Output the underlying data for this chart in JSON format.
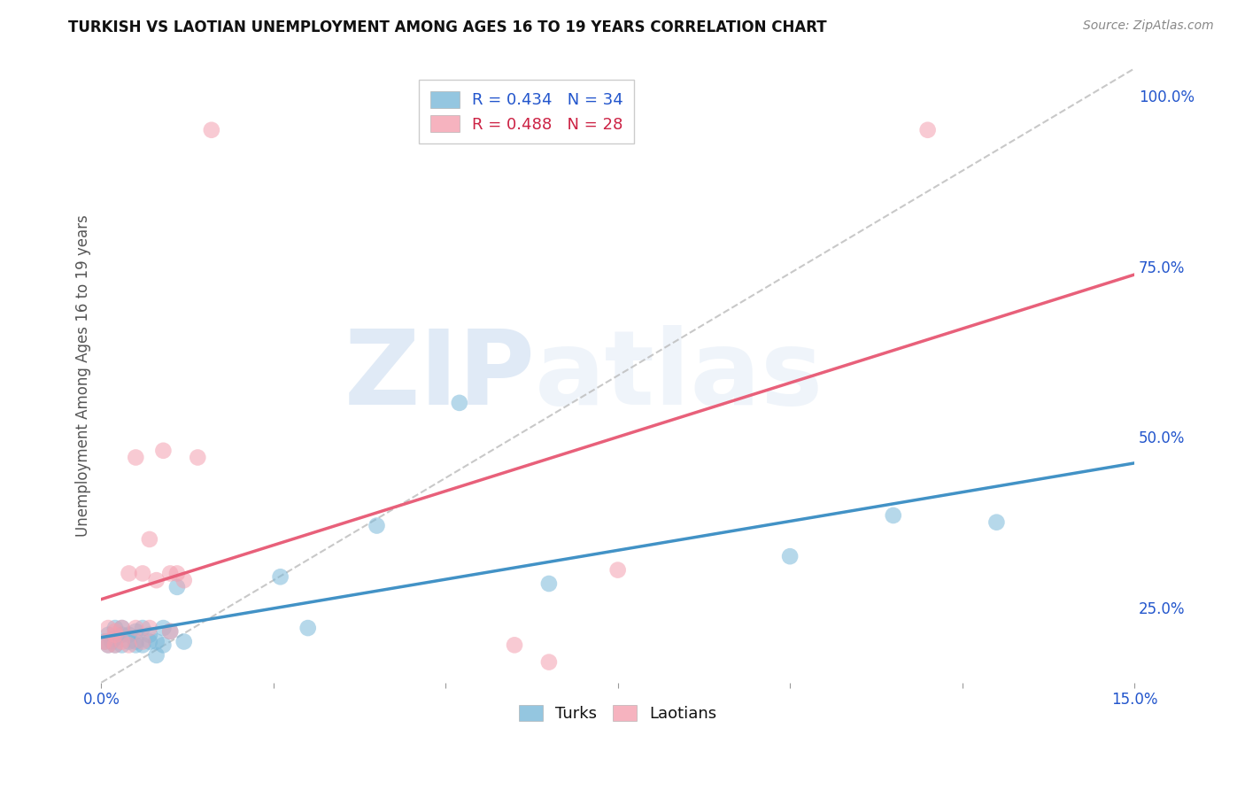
{
  "title": "TURKISH VS LAOTIAN UNEMPLOYMENT AMONG AGES 16 TO 19 YEARS CORRELATION CHART",
  "source": "Source: ZipAtlas.com",
  "ylabel": "Unemployment Among Ages 16 to 19 years",
  "xlim": [
    0.0,
    0.15
  ],
  "ylim": [
    0.14,
    1.04
  ],
  "xtick_positions": [
    0.0,
    0.025,
    0.05,
    0.075,
    0.1,
    0.125,
    0.15
  ],
  "xticklabels": [
    "0.0%",
    "",
    "",
    "",
    "",
    "",
    "15.0%"
  ],
  "ytick_right_pos": [
    0.25,
    0.5,
    0.75,
    1.0
  ],
  "ytick_right_labels": [
    "25.0%",
    "50.0%",
    "75.0%",
    "100.0%"
  ],
  "turks_color": "#7ab8d9",
  "laotians_color": "#f4a0b0",
  "turks_line_color": "#4292c6",
  "laotians_line_color": "#e8607a",
  "legend_label_turks": "R = 0.434   N = 34",
  "legend_label_laotians": "R = 0.488   N = 28",
  "background_color": "#ffffff",
  "grid_color": "#cccccc",
  "watermark_zip": "ZIP",
  "watermark_atlas": "atlas",
  "title_fontsize": 12,
  "source_fontsize": 10,
  "tick_fontsize": 12,
  "ylabel_fontsize": 12,
  "turks_x": [
    0.0005,
    0.001,
    0.001,
    0.0015,
    0.002,
    0.002,
    0.002,
    0.003,
    0.003,
    0.003,
    0.004,
    0.004,
    0.005,
    0.005,
    0.005,
    0.006,
    0.006,
    0.007,
    0.007,
    0.008,
    0.008,
    0.009,
    0.009,
    0.01,
    0.011,
    0.012,
    0.026,
    0.03,
    0.04,
    0.052,
    0.065,
    0.1,
    0.115,
    0.13
  ],
  "turks_y": [
    0.2,
    0.195,
    0.21,
    0.2,
    0.195,
    0.205,
    0.22,
    0.195,
    0.21,
    0.22,
    0.2,
    0.21,
    0.195,
    0.2,
    0.215,
    0.195,
    0.22,
    0.2,
    0.21,
    0.18,
    0.2,
    0.22,
    0.195,
    0.215,
    0.28,
    0.2,
    0.295,
    0.22,
    0.37,
    0.55,
    0.285,
    0.325,
    0.385,
    0.375
  ],
  "laotians_x": [
    0.0005,
    0.001,
    0.001,
    0.002,
    0.002,
    0.002,
    0.003,
    0.003,
    0.004,
    0.004,
    0.005,
    0.005,
    0.006,
    0.006,
    0.007,
    0.007,
    0.008,
    0.009,
    0.01,
    0.01,
    0.011,
    0.012,
    0.014,
    0.016,
    0.06,
    0.065,
    0.075,
    0.12
  ],
  "laotians_y": [
    0.2,
    0.195,
    0.22,
    0.195,
    0.21,
    0.215,
    0.2,
    0.22,
    0.195,
    0.3,
    0.47,
    0.22,
    0.2,
    0.3,
    0.35,
    0.22,
    0.29,
    0.48,
    0.3,
    0.215,
    0.3,
    0.29,
    0.47,
    0.95,
    0.195,
    0.17,
    0.305,
    0.95
  ]
}
